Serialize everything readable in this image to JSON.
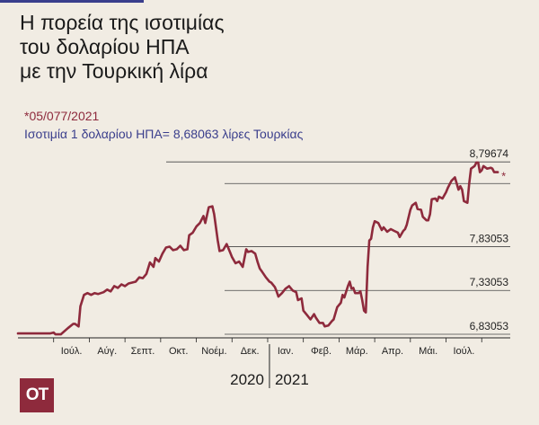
{
  "header": {
    "title_lines": [
      "Η πορεία της ισοτιμίας",
      "του δολαρίου ΗΠΑ",
      "με την Τουρκική λίρα"
    ],
    "date": "*05/077/2021",
    "rate_text": "Ισοτιμία 1 δολαρίου ΗΠΑ= 8,68063 λίρες Τουρκίας"
  },
  "logo": {
    "text": "ΟΤ"
  },
  "colors": {
    "line": "#8e2a3c",
    "accent": "#3a3e8c",
    "background": "#f1ece3",
    "grid": "#444444"
  },
  "chart_data": {
    "type": "line",
    "title": "Η πορεία της ισοτιμίας του δολαρίου ΗΠΑ με την Τουρκική λίρα",
    "xlabel": "",
    "ylabel": "",
    "ylim": [
      6.8,
      8.85
    ],
    "grid": true,
    "y_tick_labels": [
      "8,79674",
      "7,83053",
      "7,33053",
      "6,83053"
    ],
    "y_tick_values": [
      8.79674,
      7.83053,
      7.33053,
      6.83053
    ],
    "x_tick_labels": [
      "Ιούλ.",
      "Αύγ.",
      "Σεπτ.",
      "Οκτ.",
      "Νοέμ.",
      "Δεκ.",
      "Ιαν.",
      "Φεβ.",
      "Μάρ.",
      "Απρ.",
      "Μάι.",
      "Ιούλ."
    ],
    "year_labels": [
      "2020",
      "2021"
    ],
    "annotation": "*",
    "last_value": 8.68063,
    "x_unit": "months since 1 Jun 2020",
    "series": [
      {
        "values": [
          [
            0.0,
            6.84
          ],
          [
            0.4,
            6.84
          ],
          [
            0.9,
            6.84
          ],
          [
            1.0,
            6.85
          ],
          [
            1.05,
            6.83
          ],
          [
            1.2,
            6.83
          ],
          [
            1.4,
            6.9
          ],
          [
            1.55,
            6.95
          ],
          [
            1.6,
            6.95
          ],
          [
            1.7,
            6.92
          ],
          [
            1.75,
            7.15
          ],
          [
            1.85,
            7.28
          ],
          [
            1.95,
            7.3
          ],
          [
            2.05,
            7.28
          ],
          [
            2.15,
            7.3
          ],
          [
            2.25,
            7.29
          ],
          [
            2.4,
            7.31
          ],
          [
            2.5,
            7.34
          ],
          [
            2.6,
            7.32
          ],
          [
            2.7,
            7.38
          ],
          [
            2.8,
            7.36
          ],
          [
            2.9,
            7.4
          ],
          [
            3.0,
            7.38
          ],
          [
            3.1,
            7.41
          ],
          [
            3.2,
            7.42
          ],
          [
            3.3,
            7.43
          ],
          [
            3.4,
            7.48
          ],
          [
            3.5,
            7.47
          ],
          [
            3.6,
            7.52
          ],
          [
            3.7,
            7.65
          ],
          [
            3.8,
            7.6
          ],
          [
            3.85,
            7.7
          ],
          [
            3.95,
            7.66
          ],
          [
            4.05,
            7.75
          ],
          [
            4.15,
            7.82
          ],
          [
            4.25,
            7.83
          ],
          [
            4.35,
            7.79
          ],
          [
            4.45,
            7.8
          ],
          [
            4.55,
            7.84
          ],
          [
            4.65,
            7.79
          ],
          [
            4.75,
            7.8
          ],
          [
            4.8,
            7.96
          ],
          [
            4.9,
            7.99
          ],
          [
            5.0,
            8.06
          ],
          [
            5.1,
            8.1
          ],
          [
            5.2,
            8.18
          ],
          [
            5.25,
            8.1
          ],
          [
            5.35,
            8.28
          ],
          [
            5.45,
            8.29
          ],
          [
            5.5,
            8.2
          ],
          [
            5.6,
            7.9
          ],
          [
            5.65,
            7.78
          ],
          [
            5.75,
            7.79
          ],
          [
            5.85,
            7.86
          ],
          [
            5.95,
            7.76
          ],
          [
            6.0,
            7.71
          ],
          [
            6.1,
            7.64
          ],
          [
            6.2,
            7.66
          ],
          [
            6.3,
            7.6
          ],
          [
            6.4,
            7.8
          ],
          [
            6.45,
            7.77
          ],
          [
            6.55,
            7.78
          ],
          [
            6.65,
            7.75
          ],
          [
            6.72,
            7.65
          ],
          [
            6.78,
            7.58
          ],
          [
            6.85,
            7.54
          ],
          [
            6.95,
            7.48
          ],
          [
            7.05,
            7.43
          ],
          [
            7.1,
            7.42
          ],
          [
            7.2,
            7.37
          ],
          [
            7.25,
            7.32
          ],
          [
            7.3,
            7.26
          ],
          [
            7.4,
            7.3
          ],
          [
            7.5,
            7.35
          ],
          [
            7.6,
            7.38
          ],
          [
            7.7,
            7.33
          ],
          [
            7.8,
            7.31
          ],
          [
            7.85,
            7.22
          ],
          [
            7.95,
            7.24
          ],
          [
            8.0,
            7.1
          ],
          [
            8.1,
            7.05
          ],
          [
            8.2,
            7.0
          ],
          [
            8.3,
            7.06
          ],
          [
            8.35,
            7.02
          ],
          [
            8.45,
            6.96
          ],
          [
            8.55,
            6.96
          ],
          [
            8.6,
            6.92
          ],
          [
            8.7,
            6.93
          ],
          [
            8.8,
            6.98
          ],
          [
            8.85,
            7.0
          ],
          [
            8.95,
            7.14
          ],
          [
            9.05,
            7.19
          ],
          [
            9.1,
            7.28
          ],
          [
            9.15,
            7.25
          ],
          [
            9.25,
            7.38
          ],
          [
            9.3,
            7.43
          ],
          [
            9.35,
            7.35
          ],
          [
            9.4,
            7.36
          ],
          [
            9.45,
            7.3
          ],
          [
            9.55,
            7.3
          ],
          [
            9.6,
            7.32
          ],
          [
            9.65,
            7.22
          ],
          [
            9.7,
            7.1
          ],
          [
            9.75,
            7.08
          ],
          [
            9.8,
            7.6
          ],
          [
            9.85,
            7.9
          ],
          [
            9.9,
            7.92
          ],
          [
            9.95,
            8.05
          ],
          [
            10.0,
            8.12
          ],
          [
            10.1,
            8.1
          ],
          [
            10.2,
            8.02
          ],
          [
            10.25,
            8.05
          ],
          [
            10.35,
            8.0
          ],
          [
            10.45,
            8.03
          ],
          [
            10.55,
            8.01
          ],
          [
            10.65,
            7.99
          ],
          [
            10.7,
            7.94
          ],
          [
            10.8,
            8.01
          ],
          [
            10.85,
            8.03
          ],
          [
            10.9,
            8.08
          ],
          [
            11.0,
            8.25
          ],
          [
            11.05,
            8.3
          ],
          [
            11.15,
            8.33
          ],
          [
            11.2,
            8.26
          ],
          [
            11.3,
            8.25
          ],
          [
            11.35,
            8.17
          ],
          [
            11.45,
            8.13
          ],
          [
            11.5,
            8.13
          ],
          [
            11.55,
            8.2
          ],
          [
            11.6,
            8.37
          ],
          [
            11.7,
            8.38
          ],
          [
            11.75,
            8.35
          ],
          [
            11.8,
            8.4
          ],
          [
            11.9,
            8.38
          ],
          [
            12.0,
            8.45
          ],
          [
            12.05,
            8.5
          ],
          [
            12.15,
            8.58
          ],
          [
            12.25,
            8.62
          ],
          [
            12.35,
            8.48
          ],
          [
            12.4,
            8.52
          ],
          [
            12.45,
            8.48
          ],
          [
            12.5,
            8.35
          ],
          [
            12.6,
            8.33
          ],
          [
            12.65,
            8.55
          ],
          [
            12.7,
            8.72
          ],
          [
            12.8,
            8.75
          ],
          [
            12.85,
            8.79
          ],
          [
            12.9,
            8.79
          ],
          [
            12.95,
            8.68
          ],
          [
            13.0,
            8.7
          ],
          [
            13.05,
            8.75
          ],
          [
            13.15,
            8.72
          ],
          [
            13.25,
            8.73
          ],
          [
            13.3,
            8.72
          ],
          [
            13.35,
            8.68
          ],
          [
            13.45,
            8.68
          ]
        ]
      }
    ]
  }
}
